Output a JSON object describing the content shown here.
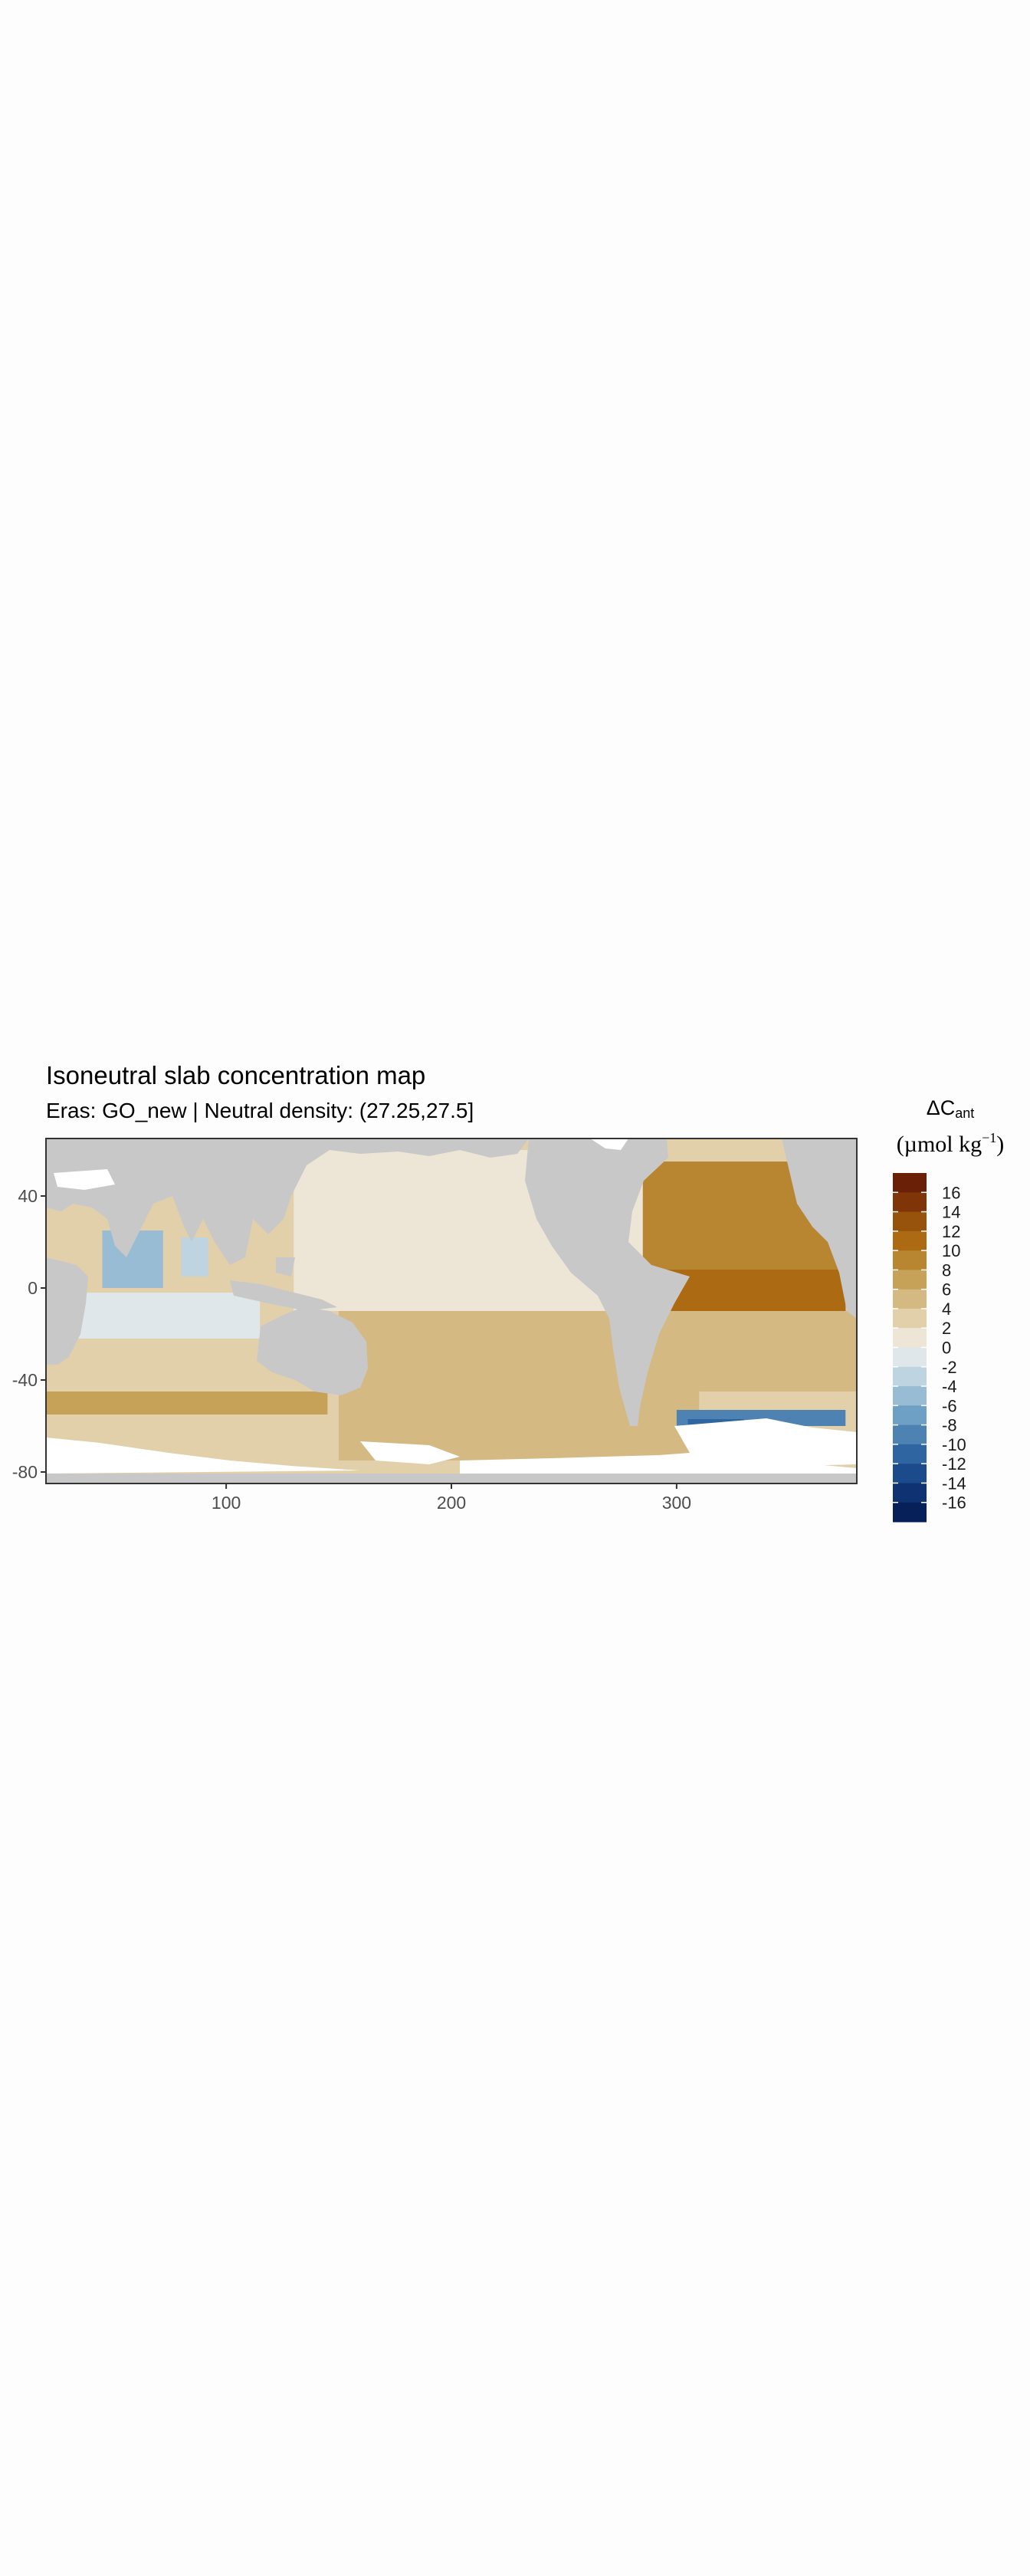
{
  "title": "Isoneutral slab concentration map",
  "subtitle": "Eras: GO_new | Neutral density: (27.25,27.5]",
  "legend": {
    "symbol": "ΔC",
    "symbol_sub": "ant",
    "unit_prefix": "(µmol kg",
    "unit_sup": "−1",
    "unit_suffix": ")",
    "labels": [
      "16",
      "14",
      "12",
      "10",
      "8",
      "6",
      "4",
      "2",
      "0",
      "-2",
      "-4",
      "-6",
      "-8",
      "-10",
      "-12",
      "-14",
      "-16"
    ],
    "colors": [
      "#6a1f07",
      "#7f3508",
      "#97520c",
      "#ac6a13",
      "#b88630",
      "#c6a158",
      "#d4ba82",
      "#e2d0ab",
      "#ede5d6",
      "#dfe7ea",
      "#bed4e0",
      "#98bcd3",
      "#6e9fc4",
      "#4d82b3",
      "#2f65a0",
      "#1c4b8b",
      "#0f3372",
      "#08205a"
    ]
  },
  "colors": {
    "land": "#c8c8c8",
    "nodata": "#ffffff",
    "panel_border": "#333333"
  },
  "chart_data": {
    "type": "heatmap",
    "title": "Isoneutral slab concentration map",
    "subtitle": "Eras: GO_new | Neutral density: (27.25,27.5]",
    "xlabel": "",
    "ylabel": "",
    "xlim": [
      20,
      380
    ],
    "ylim": [
      -85,
      65
    ],
    "x_ticks": [
      100,
      200,
      300
    ],
    "y_ticks": [
      40,
      0,
      -40,
      -80
    ],
    "grid": false,
    "legend_position": "right",
    "color_scale": {
      "breaks": [
        16,
        14,
        12,
        10,
        8,
        6,
        4,
        2,
        0,
        -2,
        -4,
        -6,
        -8,
        -10,
        -12,
        -14,
        -16
      ],
      "colors": [
        "#6a1f07",
        "#7f3508",
        "#97520c",
        "#ac6a13",
        "#b88630",
        "#c6a158",
        "#d4ba82",
        "#e2d0ab",
        "#ede5d6",
        "#dfe7ea",
        "#bed4e0",
        "#98bcd3",
        "#6e9fc4",
        "#4d82b3",
        "#2f65a0",
        "#1c4b8b",
        "#0f3372",
        "#08205a"
      ]
    },
    "regions": [
      {
        "lon": [
          20,
          380
        ],
        "lat": [
          -85,
          65
        ],
        "value": 3
      },
      {
        "lon": [
          130,
          290
        ],
        "lat": [
          -10,
          60
        ],
        "value": 1
      },
      {
        "lon": [
          150,
          310
        ],
        "lat": [
          -75,
          -10
        ],
        "value": 4
      },
      {
        "lon": [
          20,
          145
        ],
        "lat": [
          -55,
          -45
        ],
        "value": 6
      },
      {
        "lon": [
          285,
          375
        ],
        "lat": [
          -2,
          55
        ],
        "value": 8
      },
      {
        "lon": [
          295,
          375
        ],
        "lat": [
          -10,
          8
        ],
        "value": 10
      },
      {
        "lon": [
          345,
          375
        ],
        "lat": [
          -35,
          -8
        ],
        "value": 10
      },
      {
        "lon": [
          300,
          380
        ],
        "lat": [
          -45,
          -10
        ],
        "value": 4
      },
      {
        "lon": [
          25,
          115
        ],
        "lat": [
          -22,
          -2
        ],
        "value": -1
      },
      {
        "lon": [
          45,
          72
        ],
        "lat": [
          0,
          25
        ],
        "value": -5
      },
      {
        "lon": [
          80,
          92
        ],
        "lat": [
          5,
          22
        ],
        "value": -3
      },
      {
        "lon": [
          300,
          375
        ],
        "lat": [
          -60,
          -53
        ],
        "value": -9
      },
      {
        "lon": [
          305,
          330
        ],
        "lat": [
          -67,
          -57
        ],
        "value": -12
      }
    ]
  }
}
